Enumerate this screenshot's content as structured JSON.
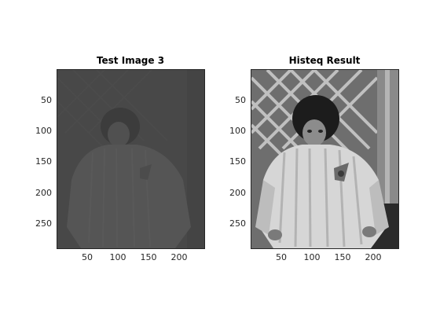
{
  "panels": [
    {
      "id": "original",
      "title": "Test Image 3",
      "yticks": [
        "50",
        "100",
        "150",
        "200",
        "250"
      ],
      "xticks": [
        "50",
        "100",
        "150",
        "200"
      ],
      "tone": "dim"
    },
    {
      "id": "histeq",
      "title": "Histeq Result",
      "yticks": [
        "50",
        "100",
        "150",
        "200",
        "250"
      ],
      "xticks": [
        "50",
        "100",
        "150",
        "200"
      ],
      "tone": "bright"
    }
  ],
  "image_axes": {
    "x_max": 240,
    "y_max": 291
  },
  "colors": {
    "dim_background": "#4a4a4a",
    "dim_mid": "#555555",
    "bright_background": "#7a7a7a",
    "bright_jacket": "#d8d8d8",
    "bright_hair": "#1a1a1a"
  }
}
